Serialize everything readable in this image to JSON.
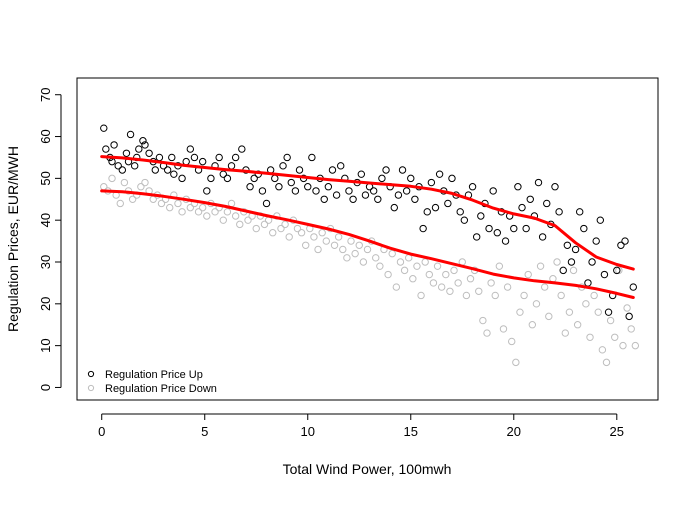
{
  "chart_data": {
    "type": "scatter",
    "title": "",
    "xlabel": "Total Wind Power, 100mwh",
    "ylabel": "Regulation Prices, EUR/MWH",
    "xlim": [
      -1.2,
      27.0
    ],
    "ylim": [
      -3,
      74
    ],
    "x_ticks": [
      0,
      5,
      10,
      15,
      20,
      25
    ],
    "y_ticks": [
      0,
      10,
      20,
      30,
      40,
      50,
      60,
      70
    ],
    "grid": false,
    "legend_position": "bottom-left",
    "series": [
      {
        "name": "Regulation Price Up",
        "kind": "points",
        "marker": "open-circle",
        "color": "#000000",
        "points": [
          [
            0.1,
            62
          ],
          [
            0.2,
            57
          ],
          [
            0.4,
            55
          ],
          [
            0.5,
            54
          ],
          [
            0.6,
            58
          ],
          [
            0.8,
            53
          ],
          [
            1.0,
            52
          ],
          [
            1.2,
            56
          ],
          [
            1.3,
            54
          ],
          [
            1.4,
            60.5
          ],
          [
            1.6,
            53
          ],
          [
            1.7,
            55
          ],
          [
            1.8,
            57
          ],
          [
            2.0,
            59
          ],
          [
            2.1,
            58
          ],
          [
            2.3,
            56
          ],
          [
            2.5,
            54
          ],
          [
            2.6,
            52
          ],
          [
            2.8,
            55
          ],
          [
            3.0,
            53
          ],
          [
            3.2,
            52
          ],
          [
            3.4,
            55
          ],
          [
            3.5,
            51
          ],
          [
            3.7,
            53
          ],
          [
            3.9,
            50
          ],
          [
            4.1,
            54
          ],
          [
            4.3,
            57
          ],
          [
            4.5,
            55
          ],
          [
            4.7,
            52
          ],
          [
            4.9,
            54
          ],
          [
            5.1,
            47
          ],
          [
            5.3,
            50
          ],
          [
            5.5,
            53
          ],
          [
            5.7,
            55
          ],
          [
            5.9,
            51
          ],
          [
            6.1,
            50
          ],
          [
            6.3,
            53
          ],
          [
            6.5,
            55
          ],
          [
            6.8,
            57
          ],
          [
            7.0,
            52
          ],
          [
            7.2,
            48
          ],
          [
            7.4,
            50
          ],
          [
            7.6,
            51
          ],
          [
            7.8,
            47
          ],
          [
            8.0,
            44
          ],
          [
            8.2,
            52
          ],
          [
            8.4,
            50
          ],
          [
            8.6,
            48
          ],
          [
            8.8,
            53
          ],
          [
            9.0,
            55
          ],
          [
            9.2,
            49
          ],
          [
            9.4,
            47
          ],
          [
            9.6,
            52
          ],
          [
            9.8,
            50
          ],
          [
            10.0,
            48
          ],
          [
            10.2,
            55
          ],
          [
            10.4,
            47
          ],
          [
            10.6,
            50
          ],
          [
            10.8,
            45
          ],
          [
            11.0,
            48
          ],
          [
            11.2,
            52
          ],
          [
            11.4,
            46
          ],
          [
            11.6,
            53
          ],
          [
            11.8,
            50
          ],
          [
            12.0,
            47
          ],
          [
            12.2,
            45
          ],
          [
            12.4,
            49
          ],
          [
            12.6,
            51
          ],
          [
            12.8,
            46
          ],
          [
            13.0,
            48
          ],
          [
            13.2,
            47
          ],
          [
            13.4,
            45
          ],
          [
            13.6,
            50
          ],
          [
            13.8,
            52
          ],
          [
            14.0,
            48
          ],
          [
            14.2,
            43
          ],
          [
            14.4,
            46
          ],
          [
            14.6,
            52
          ],
          [
            14.8,
            47
          ],
          [
            15.0,
            50
          ],
          [
            15.2,
            45
          ],
          [
            15.4,
            48
          ],
          [
            15.6,
            38
          ],
          [
            15.8,
            42
          ],
          [
            16.0,
            49
          ],
          [
            16.2,
            43
          ],
          [
            16.4,
            51
          ],
          [
            16.6,
            47
          ],
          [
            16.8,
            44
          ],
          [
            17.0,
            50
          ],
          [
            17.2,
            46
          ],
          [
            17.4,
            42
          ],
          [
            17.6,
            40
          ],
          [
            17.8,
            46
          ],
          [
            18.0,
            48
          ],
          [
            18.2,
            36
          ],
          [
            18.4,
            41
          ],
          [
            18.6,
            44
          ],
          [
            18.8,
            38
          ],
          [
            19.0,
            47
          ],
          [
            19.2,
            37
          ],
          [
            19.4,
            42
          ],
          [
            19.6,
            35
          ],
          [
            19.8,
            41
          ],
          [
            20.0,
            38
          ],
          [
            20.2,
            48
          ],
          [
            20.4,
            43
          ],
          [
            20.6,
            38
          ],
          [
            20.8,
            45
          ],
          [
            21.0,
            41
          ],
          [
            21.2,
            49
          ],
          [
            21.4,
            36
          ],
          [
            21.6,
            44
          ],
          [
            21.8,
            39
          ],
          [
            22.0,
            48
          ],
          [
            22.2,
            42
          ],
          [
            22.4,
            28
          ],
          [
            22.6,
            34
          ],
          [
            22.8,
            30
          ],
          [
            23.0,
            33
          ],
          [
            23.2,
            42
          ],
          [
            23.4,
            38
          ],
          [
            23.6,
            25
          ],
          [
            23.8,
            30
          ],
          [
            24.0,
            35
          ],
          [
            24.2,
            40
          ],
          [
            24.4,
            27
          ],
          [
            24.6,
            18
          ],
          [
            24.8,
            22
          ],
          [
            25.0,
            28
          ],
          [
            25.2,
            34
          ],
          [
            25.4,
            35
          ],
          [
            25.6,
            17
          ],
          [
            25.8,
            24
          ]
        ]
      },
      {
        "name": "Regulation Price Down",
        "kind": "points",
        "marker": "open-circle",
        "color": "#bebebe",
        "points": [
          [
            0.1,
            48
          ],
          [
            0.3,
            47
          ],
          [
            0.5,
            50
          ],
          [
            0.7,
            46
          ],
          [
            0.9,
            44
          ],
          [
            1.1,
            49
          ],
          [
            1.3,
            47
          ],
          [
            1.5,
            45
          ],
          [
            1.7,
            46
          ],
          [
            1.9,
            48
          ],
          [
            2.1,
            49
          ],
          [
            2.3,
            47
          ],
          [
            2.5,
            45
          ],
          [
            2.7,
            46
          ],
          [
            2.9,
            44
          ],
          [
            3.1,
            45
          ],
          [
            3.3,
            43
          ],
          [
            3.5,
            46
          ],
          [
            3.7,
            44
          ],
          [
            3.9,
            42
          ],
          [
            4.1,
            45
          ],
          [
            4.3,
            43
          ],
          [
            4.5,
            44
          ],
          [
            4.7,
            42
          ],
          [
            4.9,
            43
          ],
          [
            5.1,
            41
          ],
          [
            5.3,
            44
          ],
          [
            5.5,
            42
          ],
          [
            5.7,
            43
          ],
          [
            5.9,
            40
          ],
          [
            6.1,
            42
          ],
          [
            6.3,
            44
          ],
          [
            6.5,
            41
          ],
          [
            6.7,
            39
          ],
          [
            6.9,
            42
          ],
          [
            7.1,
            40
          ],
          [
            7.3,
            41
          ],
          [
            7.5,
            38
          ],
          [
            7.7,
            41
          ],
          [
            7.9,
            39
          ],
          [
            8.1,
            40
          ],
          [
            8.3,
            37
          ],
          [
            8.5,
            41
          ],
          [
            8.7,
            38
          ],
          [
            8.9,
            39
          ],
          [
            9.1,
            36
          ],
          [
            9.3,
            40
          ],
          [
            9.5,
            38
          ],
          [
            9.7,
            37
          ],
          [
            9.9,
            34
          ],
          [
            10.1,
            38
          ],
          [
            10.3,
            36
          ],
          [
            10.5,
            33
          ],
          [
            10.7,
            37
          ],
          [
            10.9,
            35
          ],
          [
            11.1,
            38
          ],
          [
            11.3,
            34
          ],
          [
            11.5,
            36
          ],
          [
            11.7,
            33
          ],
          [
            11.9,
            31
          ],
          [
            12.1,
            35
          ],
          [
            12.3,
            32
          ],
          [
            12.5,
            34
          ],
          [
            12.7,
            30
          ],
          [
            12.9,
            33
          ],
          [
            13.1,
            35
          ],
          [
            13.3,
            31
          ],
          [
            13.5,
            29
          ],
          [
            13.7,
            33
          ],
          [
            13.9,
            27
          ],
          [
            14.1,
            32
          ],
          [
            14.3,
            24
          ],
          [
            14.5,
            30
          ],
          [
            14.7,
            28
          ],
          [
            14.9,
            31
          ],
          [
            15.1,
            26
          ],
          [
            15.3,
            29
          ],
          [
            15.5,
            22
          ],
          [
            15.7,
            30
          ],
          [
            15.9,
            27
          ],
          [
            16.1,
            25
          ],
          [
            16.3,
            29
          ],
          [
            16.5,
            24
          ],
          [
            16.7,
            27
          ],
          [
            16.9,
            23
          ],
          [
            17.1,
            28
          ],
          [
            17.3,
            25
          ],
          [
            17.5,
            30
          ],
          [
            17.7,
            22
          ],
          [
            17.9,
            26
          ],
          [
            18.1,
            28
          ],
          [
            18.3,
            23
          ],
          [
            18.5,
            16
          ],
          [
            18.7,
            13
          ],
          [
            18.9,
            25
          ],
          [
            19.1,
            22
          ],
          [
            19.3,
            29
          ],
          [
            19.5,
            14
          ],
          [
            19.7,
            24
          ],
          [
            19.9,
            11
          ],
          [
            20.1,
            6
          ],
          [
            20.3,
            18
          ],
          [
            20.5,
            22
          ],
          [
            20.7,
            27
          ],
          [
            20.9,
            15
          ],
          [
            21.1,
            20
          ],
          [
            21.3,
            29
          ],
          [
            21.5,
            24
          ],
          [
            21.7,
            17
          ],
          [
            21.9,
            26
          ],
          [
            22.1,
            30
          ],
          [
            22.3,
            22
          ],
          [
            22.5,
            13
          ],
          [
            22.7,
            18
          ],
          [
            22.9,
            28
          ],
          [
            23.1,
            15
          ],
          [
            23.3,
            24
          ],
          [
            23.5,
            20
          ],
          [
            23.7,
            12
          ],
          [
            23.9,
            22
          ],
          [
            24.1,
            18
          ],
          [
            24.3,
            9
          ],
          [
            24.5,
            6
          ],
          [
            24.7,
            16
          ],
          [
            24.9,
            12
          ],
          [
            25.1,
            28
          ],
          [
            25.3,
            10
          ],
          [
            25.5,
            19
          ],
          [
            25.7,
            14
          ],
          [
            25.9,
            10
          ]
        ]
      },
      {
        "name": "",
        "kind": "smooth",
        "color": "#ff0000",
        "points": [
          [
            0,
            55.2
          ],
          [
            1,
            54.9
          ],
          [
            2,
            54.4
          ],
          [
            3,
            53.8
          ],
          [
            4,
            53.1
          ],
          [
            5,
            52.6
          ],
          [
            6,
            52.1
          ],
          [
            7,
            51.7
          ],
          [
            8,
            51.2
          ],
          [
            9,
            50.7
          ],
          [
            10,
            50.2
          ],
          [
            11,
            49.7
          ],
          [
            12,
            49.3
          ],
          [
            13,
            48.9
          ],
          [
            14,
            48.5
          ],
          [
            15,
            48.1
          ],
          [
            16,
            47.4
          ],
          [
            17,
            46.4
          ],
          [
            18,
            44.8
          ],
          [
            19,
            42.9
          ],
          [
            20,
            41.5
          ],
          [
            21,
            40.5
          ],
          [
            22,
            38.7
          ],
          [
            23,
            34.6
          ],
          [
            24,
            31.2
          ],
          [
            25,
            29.4
          ],
          [
            25.8,
            28.3
          ]
        ]
      },
      {
        "name": "",
        "kind": "smooth",
        "color": "#ff0000",
        "points": [
          [
            0,
            47.0
          ],
          [
            1,
            46.8
          ],
          [
            2,
            46.3
          ],
          [
            3,
            45.7
          ],
          [
            4,
            45.0
          ],
          [
            5,
            44.2
          ],
          [
            6,
            43.3
          ],
          [
            7,
            42.2
          ],
          [
            8,
            41.1
          ],
          [
            9,
            40.1
          ],
          [
            10,
            39.0
          ],
          [
            11,
            37.9
          ],
          [
            12,
            36.6
          ],
          [
            13,
            35.0
          ],
          [
            14,
            33.3
          ],
          [
            15,
            31.9
          ],
          [
            16,
            30.8
          ],
          [
            17,
            29.6
          ],
          [
            18,
            28.4
          ],
          [
            19,
            27.1
          ],
          [
            20,
            26.2
          ],
          [
            21,
            25.5
          ],
          [
            22,
            25.0
          ],
          [
            23,
            24.4
          ],
          [
            24,
            23.6
          ],
          [
            25,
            22.5
          ],
          [
            25.8,
            21.5
          ]
        ]
      }
    ]
  }
}
